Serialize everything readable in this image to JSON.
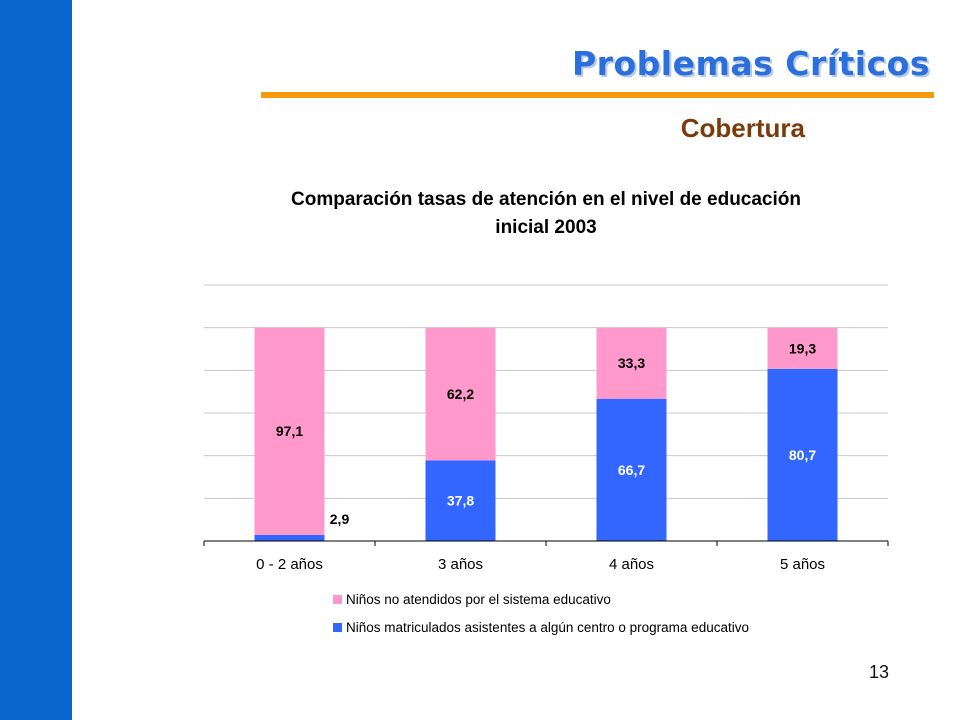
{
  "slide": {
    "title": "Problemas Críticos",
    "subtitle": "Cobertura",
    "page_number": "13"
  },
  "colors": {
    "side_bar": "#0a66cc",
    "title": "#2a6fdc",
    "rule": "#f59a0c",
    "subtitle": "#7a3c0c",
    "series_not_attended": "#ff99cc",
    "series_enrolled": "#3366ff"
  },
  "chart_data": {
    "type": "bar",
    "stacked": true,
    "title": "Comparación tasas de atención en el nivel de educación inicial 2003",
    "title_lines": [
      "Comparación tasas de atención en el nivel de educación",
      "inicial 2003"
    ],
    "categories": [
      "0 - 2 años",
      "3 años",
      "4 años",
      "5 años"
    ],
    "series": [
      {
        "name": "Niños matriculados asistentes a algún centro o programa educativo",
        "color": "#3366ff",
        "values": [
          2.9,
          37.8,
          66.7,
          80.7
        ],
        "labels": [
          "2,9",
          "37,8",
          "66,7",
          "80,7"
        ]
      },
      {
        "name": "Niños no atendidos por el sistema educativo",
        "color": "#ff99cc",
        "values": [
          97.1,
          62.2,
          33.3,
          19.3
        ],
        "labels": [
          "97,1",
          "62,2",
          "33,3",
          "19,3"
        ]
      }
    ],
    "legend_order": [
      1,
      0
    ],
    "ylim": [
      0,
      120
    ],
    "grid_step": 20,
    "grid": true,
    "legend_position": "bottom",
    "xlabel": "",
    "ylabel": ""
  }
}
